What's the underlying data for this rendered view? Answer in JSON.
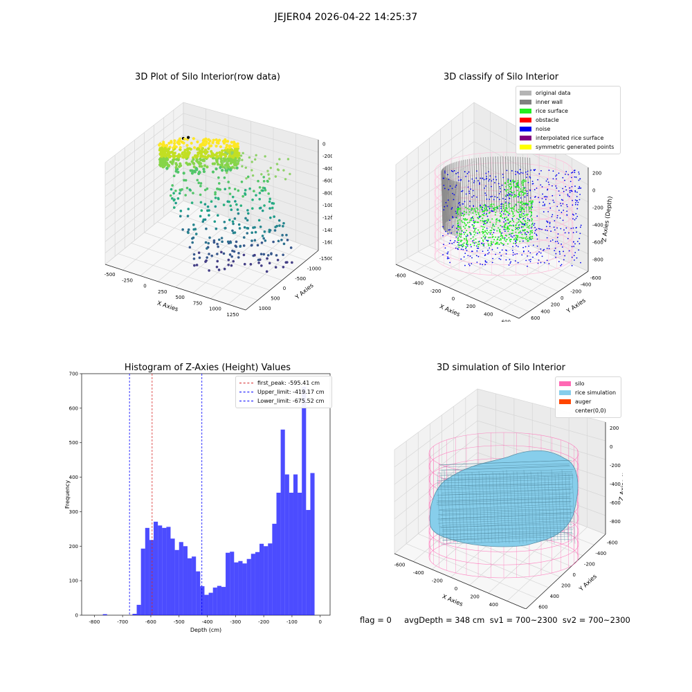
{
  "suptitle": "JEJER04 2026-04-22 14:25:37",
  "footer": "flag = 0     avgDepth = 348 cm  sv1 = 700~2300  sv2 = 700~2300",
  "panels": {
    "raw": {
      "title": "3D Plot of Silo Interior(row data)",
      "xlabel": "X Axies",
      "ylabel": "Y Axies",
      "zlabel": "Z Axies (Depth)",
      "xticks": [
        "-500",
        "-250",
        "0",
        "250",
        "500",
        "750",
        "1000",
        "1250"
      ],
      "yticks": [
        "1000",
        "500",
        "0",
        "-500",
        "-1000",
        "-1500"
      ],
      "zticks": [
        "0",
        "-200",
        "-400",
        "-600",
        "-800",
        "-1000",
        "-1200",
        "-1400",
        "-1600"
      ]
    },
    "classify": {
      "title": "3D classify of Silo Interior",
      "xlabel": "X Axies",
      "ylabel": "Y Axies",
      "zlabel": "Z Axies (Depth)",
      "xticks": [
        "-600",
        "-400",
        "-200",
        "0",
        "200",
        "400",
        "600"
      ],
      "yticks": [
        "600",
        "400",
        "200",
        "0",
        "-200",
        "-400",
        "-600"
      ],
      "zticks": [
        "200",
        "0",
        "-200",
        "-400",
        "-600",
        "-800"
      ],
      "legend": [
        {
          "label": "original data",
          "color": "#b4b4b4"
        },
        {
          "label": "inner wall",
          "color": "#808080"
        },
        {
          "label": "rice surface",
          "color": "#22ee22"
        },
        {
          "label": "obstacle",
          "color": "#ff0000"
        },
        {
          "label": "noise",
          "color": "#0000ee"
        },
        {
          "label": "interpolated rice surface",
          "color": "#800080"
        },
        {
          "label": "symmetric generated points",
          "color": "#ffff00"
        }
      ]
    },
    "histogram": {
      "title": "Histogram of Z-Axies (Height) Values",
      "xlabel": "Depth (cm)",
      "ylabel": "Frequency",
      "legend": [
        {
          "label": "first_peak: -595.41 cm",
          "color": "#d62728"
        },
        {
          "label": "Upper_limit: -419.17 cm",
          "color": "#0000ff"
        },
        {
          "label": "Lower_limit: -675.52 cm",
          "color": "#0000ff"
        }
      ]
    },
    "simulation": {
      "title": "3D simulation of Silo Interior",
      "xlabel": "X Axies",
      "ylabel": "Y Axies",
      "zlabel": "Z Axies (Depth)",
      "xticks": [
        "-600",
        "-400",
        "-200",
        "0",
        "200",
        "400",
        "600"
      ],
      "yticks": [
        "600",
        "400",
        "200",
        "0",
        "-200",
        "-400",
        "-600"
      ],
      "zticks": [
        "200",
        "0",
        "-200",
        "-400",
        "-600",
        "-800"
      ],
      "legend": [
        {
          "label": "silo",
          "color": "#ff69b4"
        },
        {
          "label": "rice simulation",
          "color": "#87ceeb"
        },
        {
          "label": "auger",
          "color": "#ff4500"
        },
        {
          "label": "center(0,0)",
          "color": ""
        }
      ]
    }
  },
  "chart_data": [
    {
      "type": "scatter",
      "title": "3D Plot of Silo Interior(row data)",
      "xlabel": "X Axies",
      "ylabel": "Y Axies",
      "zlabel": "Z Axies (Depth)",
      "xlim": [
        -500,
        1300
      ],
      "ylim": [
        -1600,
        1100
      ],
      "zlim": [
        -1650,
        50
      ],
      "grid": true
    },
    {
      "type": "scatter",
      "title": "3D classify of Silo Interior",
      "xlabel": "X Axies",
      "ylabel": "Y Axies",
      "zlabel": "Z Axies (Depth)",
      "xlim": [
        -650,
        650
      ],
      "ylim": [
        -650,
        650
      ],
      "zlim": [
        -900,
        250
      ],
      "legend_placement": "top-right",
      "series": [
        {
          "name": "original data"
        },
        {
          "name": "inner wall"
        },
        {
          "name": "rice surface"
        },
        {
          "name": "obstacle"
        },
        {
          "name": "noise"
        },
        {
          "name": "interpolated rice surface"
        },
        {
          "name": "symmetric generated points"
        }
      ],
      "grid": true
    },
    {
      "type": "bar",
      "title": "Histogram of Z-Axies (Height) Values",
      "xlabel": "Depth (cm)",
      "ylabel": "Frequency",
      "xlim": [
        -845,
        35
      ],
      "ylim": [
        0,
        700
      ],
      "xticks": [
        -800,
        -700,
        -600,
        -500,
        -400,
        -300,
        -200,
        -100,
        0
      ],
      "yticks": [
        0,
        100,
        200,
        300,
        400,
        500,
        600,
        700
      ],
      "bin_width": 15.0,
      "bin_edges_start": -770.0,
      "values": [
        3,
        0,
        0,
        0,
        0,
        0,
        0,
        4,
        30,
        193,
        253,
        218,
        271,
        260,
        253,
        256,
        222,
        189,
        212,
        200,
        165,
        170,
        127,
        84,
        59,
        65,
        80,
        85,
        82,
        181,
        184,
        153,
        157,
        150,
        163,
        178,
        183,
        207,
        200,
        208,
        265,
        355,
        538,
        408,
        355,
        408,
        355,
        662,
        305,
        412
      ],
      "vlines": [
        {
          "x": -595.41,
          "label": "first_peak: -595.41 cm",
          "color": "#d62728"
        },
        {
          "x": -419.17,
          "label": "Upper_limit: -419.17 cm",
          "color": "#0000ff"
        },
        {
          "x": -675.52,
          "label": "Lower_limit: -675.52 cm",
          "color": "#0000ff"
        }
      ],
      "legend_placement": "upper right"
    },
    {
      "type": "surface",
      "title": "3D simulation of Silo Interior",
      "xlabel": "X Axies",
      "ylabel": "Y Axies",
      "zlabel": "Z Axies (Depth)",
      "xlim": [
        -650,
        650
      ],
      "ylim": [
        -650,
        650
      ],
      "zlim": [
        -900,
        250
      ],
      "legend_placement": "top-right",
      "series": [
        {
          "name": "silo"
        },
        {
          "name": "rice simulation"
        },
        {
          "name": "auger"
        },
        {
          "name": "center(0,0)"
        }
      ],
      "grid": true
    }
  ]
}
